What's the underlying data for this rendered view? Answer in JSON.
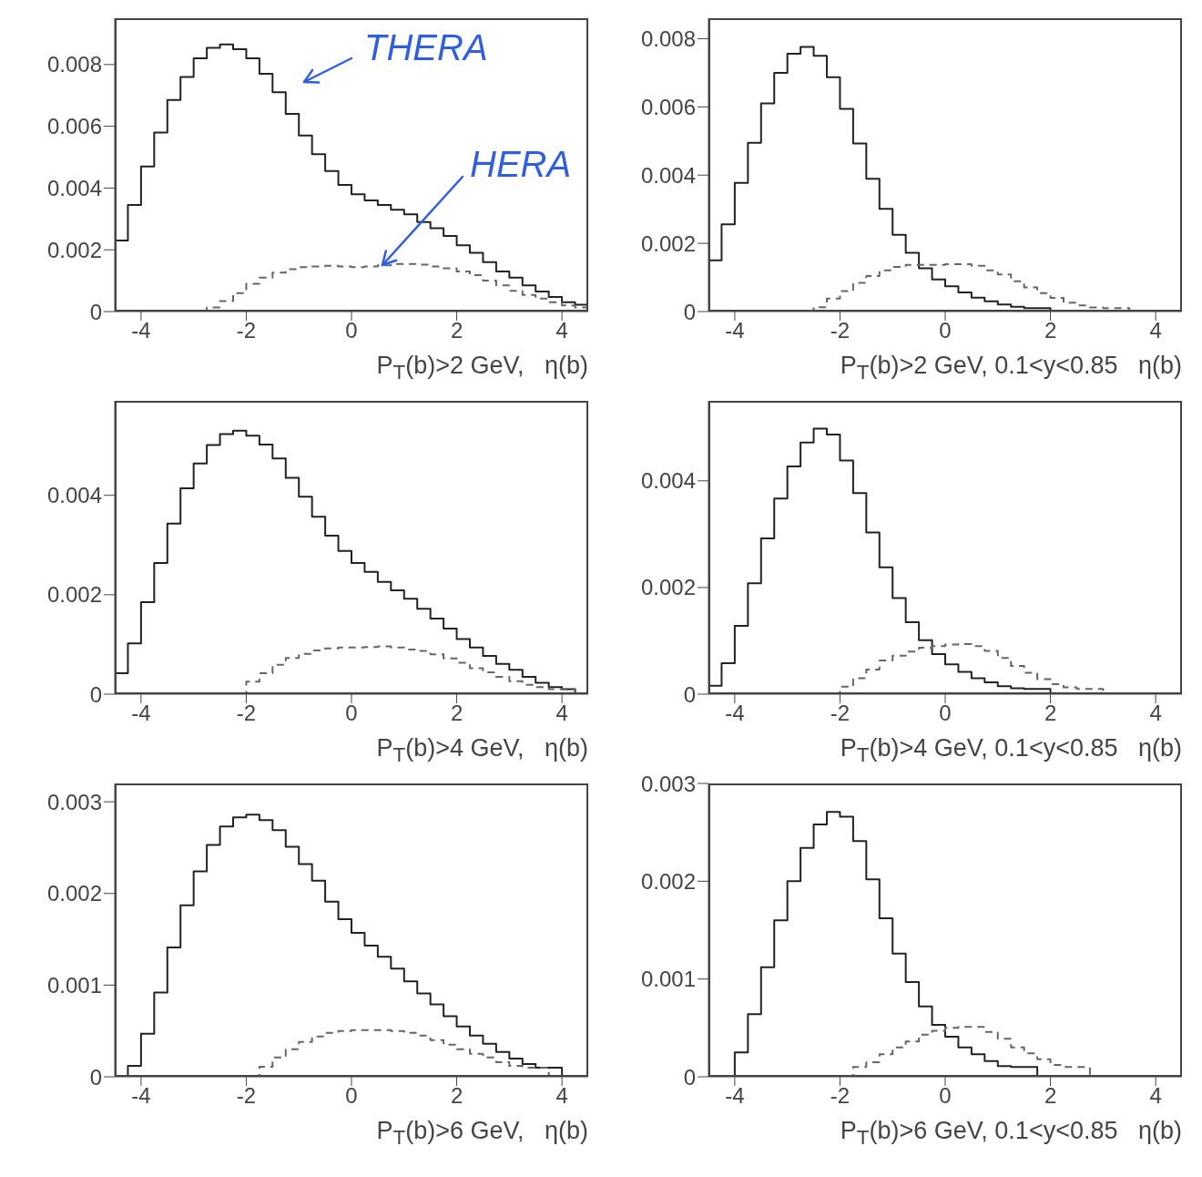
{
  "chart_data": [
    {
      "type": "histogram",
      "xlabel": "P$_{T}$(b)>2 GeV,   η(b)",
      "bins": [
        -4.5,
        -4.25,
        -4,
        -3.75,
        -3.5,
        -3.25,
        -3,
        -2.75,
        -2.5,
        -2.25,
        -2,
        -1.75,
        -1.5,
        -1.25,
        -1,
        -0.75,
        -0.5,
        -0.25,
        0,
        0.25,
        0.5,
        0.75,
        1,
        1.25,
        1.5,
        1.75,
        2,
        2.25,
        2.5,
        2.75,
        3,
        3.25,
        3.5,
        3.75,
        4,
        4.25,
        4.5
      ],
      "xlim": [
        -4.5,
        4.5
      ],
      "xticks": [
        -4,
        -2,
        0,
        2,
        4
      ],
      "ylim": [
        0,
        0.0095
      ],
      "yticks": [
        0,
        0.002,
        0.004,
        0.006,
        0.008
      ],
      "series": [
        {
          "name": "THERA",
          "color": "#222222",
          "line_style": "solid",
          "values": [
            0.0023,
            0.00345,
            0.0047,
            0.0058,
            0.00685,
            0.0076,
            0.0082,
            0.00854,
            0.00865,
            0.0085,
            0.0082,
            0.0077,
            0.0071,
            0.0064,
            0.0057,
            0.0051,
            0.00455,
            0.0041,
            0.0038,
            0.0036,
            0.00345,
            0.0033,
            0.00315,
            0.0029,
            0.0027,
            0.00245,
            0.00215,
            0.0019,
            0.0016,
            0.0013,
            0.0011,
            0.00085,
            0.00065,
            0.00047,
            0.0003,
            0.00022
          ]
        },
        {
          "name": "HERA",
          "color": "#666666",
          "line_style": "dashed",
          "values": [
            0,
            0,
            0,
            0,
            0,
            0,
            0,
            0.00013,
            0.00034,
            0.0006,
            0.0009,
            0.0011,
            0.00126,
            0.00137,
            0.00144,
            0.00146,
            0.00148,
            0.00146,
            0.00144,
            0.00146,
            0.0015,
            0.00154,
            0.00154,
            0.00152,
            0.00146,
            0.0014,
            0.0013,
            0.00118,
            0.001,
            0.00085,
            0.00067,
            0.00054,
            0.00042,
            0.0003,
            0.0002,
            0.00013
          ]
        }
      ]
    },
    {
      "type": "histogram",
      "xlabel": "P$_{T}$(b)>2 GeV, 0.1<y<0.85   η(b)",
      "bins": [
        -4.5,
        -4.25,
        -4,
        -3.75,
        -3.5,
        -3.25,
        -3,
        -2.75,
        -2.5,
        -2.25,
        -2,
        -1.75,
        -1.5,
        -1.25,
        -1,
        -0.75,
        -0.5,
        -0.25,
        0,
        0.25,
        0.5,
        0.75,
        1,
        1.25,
        1.5,
        1.75,
        2,
        2.25,
        2.5,
        2.75,
        3,
        3.25,
        3.5,
        3.75,
        4,
        4.25,
        4.5
      ],
      "xlim": [
        -4.5,
        4.5
      ],
      "xticks": [
        -4,
        -2,
        0,
        2,
        4
      ],
      "ylim": [
        0,
        0.0086
      ],
      "yticks": [
        0,
        0.002,
        0.004,
        0.006,
        0.008
      ],
      "series": [
        {
          "color": "#222222",
          "line_style": "solid",
          "values": [
            0.0015,
            0.00256,
            0.00377,
            0.00495,
            0.0061,
            0.007,
            0.00756,
            0.00776,
            0.0075,
            0.00687,
            0.00594,
            0.00493,
            0.00389,
            0.00301,
            0.00225,
            0.00172,
            0.00127,
            0.00094,
            0.00074,
            0.00056,
            0.00041,
            0.0003,
            0.00021,
            0.00014,
            0.0001,
            0.0001,
            0,
            0,
            0,
            0,
            0,
            0,
            0,
            0,
            0,
            0
          ]
        },
        {
          "color": "#666666",
          "line_style": "dashed",
          "values": [
            0,
            0,
            0,
            0,
            0,
            0,
            0,
            0,
            0.00013,
            0.00038,
            0.0006,
            0.00084,
            0.00104,
            0.00121,
            0.00131,
            0.00137,
            0.00137,
            0.00137,
            0.00139,
            0.00139,
            0.00134,
            0.00121,
            0.00109,
            0.00089,
            0.00071,
            0.00054,
            0.0004,
            0.00026,
            0.00018,
            0.00012,
            0.0001,
            0.0001,
            0,
            0,
            0,
            0
          ]
        }
      ]
    },
    {
      "type": "histogram",
      "xlabel": "P$_{T}$(b)>4 GeV,   η(b)",
      "bins": [
        -4.5,
        -4.25,
        -4,
        -3.75,
        -3.5,
        -3.25,
        -3,
        -2.75,
        -2.5,
        -2.25,
        -2,
        -1.75,
        -1.5,
        -1.25,
        -1,
        -0.75,
        -0.5,
        -0.25,
        0,
        0.25,
        0.5,
        0.75,
        1,
        1.25,
        1.5,
        1.75,
        2,
        2.25,
        2.5,
        2.75,
        3,
        3.25,
        3.5,
        3.75,
        4,
        4.25,
        4.5
      ],
      "xlim": [
        -4.5,
        4.5
      ],
      "xticks": [
        -4,
        -2,
        0,
        2,
        4
      ],
      "ylim": [
        0,
        0.0059
      ],
      "yticks": [
        0,
        0.002,
        0.004
      ],
      "series": [
        {
          "color": "#222222",
          "line_style": "solid",
          "values": [
            0.00042,
            0.00102,
            0.00185,
            0.00264,
            0.00343,
            0.00414,
            0.00464,
            0.00501,
            0.00523,
            0.0053,
            0.0052,
            0.00502,
            0.00474,
            0.00435,
            0.00397,
            0.00357,
            0.00319,
            0.00288,
            0.00264,
            0.00246,
            0.00226,
            0.00209,
            0.00192,
            0.00172,
            0.00152,
            0.00132,
            0.00111,
            0.00094,
            0.00077,
            0.00061,
            0.00049,
            0.00035,
            0.00023,
            0.00014,
            0.0001,
            0
          ]
        },
        {
          "color": "#666666",
          "line_style": "dashed",
          "values": [
            0,
            0,
            0,
            0,
            0,
            0,
            0,
            0,
            0,
            0,
            0.00025,
            0.00042,
            0.00059,
            0.00073,
            0.00081,
            0.00088,
            0.00092,
            0.00094,
            0.00094,
            0.00095,
            0.00096,
            0.00094,
            0.0009,
            0.00087,
            0.0008,
            0.00072,
            0.00063,
            0.00052,
            0.00044,
            0.00035,
            0.00026,
            0.00019,
            0.00014,
            0.0001,
            0.0001,
            0
          ]
        }
      ]
    },
    {
      "type": "histogram",
      "xlabel": "P$_{T}$(b)>4 GeV, 0.1<y<0.85   η(b)",
      "bins": [
        -4.5,
        -4.25,
        -4,
        -3.75,
        -3.5,
        -3.25,
        -3,
        -2.75,
        -2.5,
        -2.25,
        -2,
        -1.75,
        -1.5,
        -1.25,
        -1,
        -0.75,
        -0.5,
        -0.25,
        0,
        0.25,
        0.5,
        0.75,
        1,
        1.25,
        1.5,
        1.75,
        2,
        2.25,
        2.5,
        2.75,
        3,
        3.25,
        3.5,
        3.75,
        4,
        4.25,
        4.5
      ],
      "xlim": [
        -4.5,
        4.5
      ],
      "xticks": [
        -4,
        -2,
        0,
        2,
        4
      ],
      "ylim": [
        0,
        0.0055
      ],
      "yticks": [
        0,
        0.002,
        0.004
      ],
      "series": [
        {
          "color": "#222222",
          "line_style": "solid",
          "values": [
            0.00016,
            0.00058,
            0.00128,
            0.00208,
            0.00292,
            0.00367,
            0.00427,
            0.00472,
            0.00498,
            0.00487,
            0.00438,
            0.00377,
            0.00303,
            0.00238,
            0.0018,
            0.00135,
            0.00101,
            0.00075,
            0.00056,
            0.00042,
            0.0003,
            0.00022,
            0.00015,
            0.00011,
            0.0001,
            0.0001,
            0,
            0,
            0,
            0,
            0,
            0,
            0,
            0,
            0,
            0
          ]
        },
        {
          "color": "#666666",
          "line_style": "dashed",
          "values": [
            0,
            0,
            0,
            0,
            0,
            0,
            0,
            0,
            0,
            0,
            0.00014,
            0.0003,
            0.00046,
            0.00063,
            0.00072,
            0.0008,
            0.00087,
            0.0009,
            0.00093,
            0.00094,
            0.0009,
            0.00081,
            0.00068,
            0.00053,
            0.0004,
            0.00028,
            0.00019,
            0.00013,
            0.0001,
            0.0001,
            0,
            0,
            0,
            0,
            0,
            0
          ]
        }
      ]
    },
    {
      "type": "histogram",
      "xlabel": "P$_{T}$(b)>6 GeV,   η(b)",
      "bins": [
        -4.5,
        -4.25,
        -4,
        -3.75,
        -3.5,
        -3.25,
        -3,
        -2.75,
        -2.5,
        -2.25,
        -2,
        -1.75,
        -1.5,
        -1.25,
        -1,
        -0.75,
        -0.5,
        -0.25,
        0,
        0.25,
        0.5,
        0.75,
        1,
        1.25,
        1.5,
        1.75,
        2,
        2.25,
        2.5,
        2.75,
        3,
        3.25,
        3.5,
        3.75,
        4,
        4.25,
        4.5
      ],
      "xlim": [
        -4.5,
        4.5
      ],
      "xticks": [
        -4,
        -2,
        0,
        2,
        4
      ],
      "ylim": [
        0,
        0.0032
      ],
      "yticks": [
        0,
        0.001,
        0.002,
        0.003
      ],
      "series": [
        {
          "color": "#222222",
          "line_style": "solid",
          "values": [
            0,
            0.00012,
            0.00047,
            0.00092,
            0.00141,
            0.00187,
            0.00224,
            0.00253,
            0.00273,
            0.00283,
            0.00286,
            0.0028,
            0.00269,
            0.00251,
            0.00232,
            0.00214,
            0.00191,
            0.00172,
            0.00157,
            0.00143,
            0.00131,
            0.00118,
            0.00104,
            0.00091,
            0.00079,
            0.00066,
            0.00055,
            0.00045,
            0.00036,
            0.00027,
            0.0002,
            0.00014,
            0.0001,
            0.0001,
            0,
            0
          ]
        },
        {
          "color": "#666666",
          "line_style": "dashed",
          "values": [
            0,
            0,
            0,
            0,
            0,
            0,
            0,
            0,
            0,
            0,
            0,
            0.00011,
            0.00021,
            0.0003,
            0.00038,
            0.00044,
            0.00048,
            0.0005,
            0.00051,
            0.00051,
            0.00051,
            0.0005,
            0.00048,
            0.00045,
            0.0004,
            0.00035,
            0.0003,
            0.00025,
            0.00021,
            0.00016,
            0.00012,
            0.0001,
            0.0001,
            0,
            0,
            0
          ]
        }
      ]
    },
    {
      "type": "histogram",
      "xlabel": "P$_{T}$(b)>6 GeV, 0.1<y<0.85   η(b)",
      "bins": [
        -4.5,
        -4.25,
        -4,
        -3.75,
        -3.5,
        -3.25,
        -3,
        -2.75,
        -2.5,
        -2.25,
        -2,
        -1.75,
        -1.5,
        -1.25,
        -1,
        -0.75,
        -0.5,
        -0.25,
        0,
        0.25,
        0.5,
        0.75,
        1,
        1.25,
        1.5,
        1.75,
        2,
        2.25,
        2.5,
        2.75,
        3,
        3.25,
        3.5,
        3.75,
        4,
        4.25,
        4.5
      ],
      "xlim": [
        -4.5,
        4.5
      ],
      "xticks": [
        -4,
        -2,
        0,
        2,
        4
      ],
      "ylim": [
        0,
        0.003
      ],
      "yticks": [
        0,
        0.001,
        0.002,
        0.003
      ],
      "series": [
        {
          "color": "#222222",
          "line_style": "solid",
          "values": [
            0,
            0,
            0.00025,
            0.00064,
            0.00112,
            0.0016,
            0.002,
            0.00234,
            0.00258,
            0.00271,
            0.00266,
            0.00241,
            0.00202,
            0.00162,
            0.00126,
            0.00097,
            0.00072,
            0.00053,
            0.00041,
            0.0003,
            0.00023,
            0.00016,
            0.00011,
            0.0001,
            0.0001,
            0,
            0,
            0,
            0,
            0,
            0,
            0,
            0,
            0,
            0,
            0
          ]
        },
        {
          "color": "#666666",
          "line_style": "dashed",
          "values": [
            0,
            0,
            0,
            0,
            0,
            0,
            0,
            0,
            0,
            0,
            0,
            0.0001,
            0.00015,
            0.00023,
            0.0003,
            0.00036,
            0.00043,
            0.00047,
            0.0005,
            0.00051,
            0.00051,
            0.00046,
            0.00039,
            0.0003,
            0.00024,
            0.00018,
            0.00012,
            0.0001,
            0.0001,
            0,
            0,
            0,
            0,
            0,
            0,
            0
          ]
        }
      ]
    }
  ]
}
